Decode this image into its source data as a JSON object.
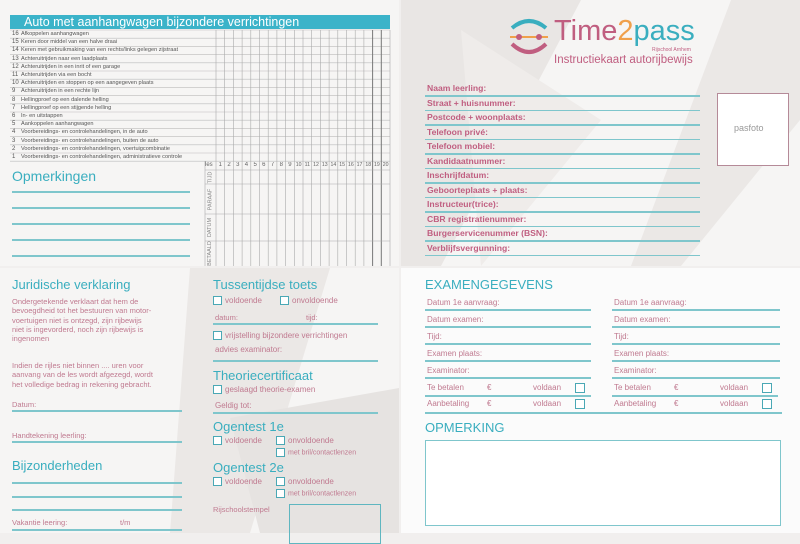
{
  "left_top": {
    "title": "Auto met aanhangwagen bijzondere verrichtingen",
    "rows": [
      {
        "n": "16",
        "t": "Afkoppelen aanhangwagen"
      },
      {
        "n": "15",
        "t": "Keren door middel van een halve draai"
      },
      {
        "n": "14",
        "t": "Keren met gebruikmaking van een rechts/links gelegen zijstraat"
      },
      {
        "n": "13",
        "t": "Achteruitrijden naar een laadplaats"
      },
      {
        "n": "12",
        "t": "Achteruitrijden in een inrit of een garage"
      },
      {
        "n": "11",
        "t": "Achteruitrijden via een bocht"
      },
      {
        "n": "10",
        "t": "Achteruitrijden en stoppen op een aangegeven plaats"
      },
      {
        "n": "9",
        "t": "Achteruitrijden in een rechte lijn"
      },
      {
        "n": "8",
        "t": "Hellingproef op een dalende helling"
      },
      {
        "n": "7",
        "t": "Hellingproef op een stijgende helling"
      },
      {
        "n": "6",
        "t": "In- en uitstappen"
      },
      {
        "n": "5",
        "t": "Aankoppelen aanhangwagen"
      },
      {
        "n": "4",
        "t": "Voorbereidings- en controlehandelingen, in de auto"
      },
      {
        "n": "3",
        "t": "Voorbereidings- en controlehandelingen, buiten de auto"
      },
      {
        "n": "2",
        "t": "Voorbereidings- en controlehandelingen, voertuigcombinatie"
      },
      {
        "n": "1",
        "t": "Voorbereidings- en controlehandelingen, administratieve controle"
      }
    ],
    "les_label": "les",
    "lessons": [
      "1",
      "2",
      "3",
      "4",
      "5",
      "6",
      "7",
      "8",
      "9",
      "10",
      "11",
      "12",
      "13",
      "14",
      "15",
      "16",
      "17",
      "18",
      "19",
      "20"
    ],
    "vertical_labels": [
      "TIJD",
      "PARAAF",
      "DATUM",
      "BETAALD"
    ],
    "remarks_title": "Opmerkingen"
  },
  "right_top": {
    "logo_text": "Time2pass",
    "logo_sub": "Rijschool Arnhem",
    "subtitle": "Instructiekaart autorijbewijs",
    "fields": [
      "Naam leerling:",
      "Straat + huisnummer:",
      "Postcode + woonplaats:",
      "Telefoon privé:",
      "Telefoon mobiel:",
      "Kandidaatnummer:",
      "Inschrijfdatum:",
      "Geboorteplaats + plaats:",
      "Instructeur(trice):",
      "CBR registratienummer:",
      "Burgerservicenummer (BSN):",
      "Verblijfsvergunning:"
    ],
    "photo_label": "pasfoto"
  },
  "left_bottom": {
    "legal_title": "Juridische verklaring",
    "legal_p1": [
      "Ondergetekende verklaart dat hem de",
      "bevoegdheid tot het bestuuren van motor-",
      "voertuigen niet is ontzegd, zijn rijbewijs",
      "niet is ingevorderd, noch zijn rijbewijs is",
      "ingenomen"
    ],
    "legal_p2": [
      "Indien de rijles niet binnen .... uren voor",
      "aanvang van de les wordt afgezegd, wordt",
      "het volledige bedrag in rekening gebracht."
    ],
    "date_label": "Datum:",
    "signature_label": "Handtekening leerling:",
    "details_title": "Bijzonderheden",
    "vacation_label": "Vakantie leering:",
    "vacation_until": "t/m"
  },
  "middle_bottom": {
    "interim_title": "Tussentijdse toets",
    "pass": "voldoende",
    "fail": "onvoldoende",
    "date": "datum:",
    "time": "tijd:",
    "exemption": "vrijstelling bijzondere verrichtingen",
    "advice": "advies examinator:",
    "theory_title": "Theoriecertificaat",
    "theory_pass": "geslaagd theorie-examen",
    "valid_until": "Geldig tot:",
    "eye1_title": "Ogentest 1e",
    "eye2_title": "Ogentest 2e",
    "glasses": "met bril/contactlenzen",
    "stamp": "Rijschoolstempel"
  },
  "right_bottom": {
    "title": "EXAMENGEGEVENS",
    "fields": [
      "Datum 1e aanvraag:",
      "Datum examen:",
      "Tijd:",
      "Examen plaats:",
      "Examinator:"
    ],
    "pay": [
      {
        "label": "Te betalen",
        "cur": "€",
        "paid": "voldaan"
      },
      {
        "label": "Aanbetaling",
        "cur": "€",
        "paid": "voldaan"
      }
    ],
    "remark_title": "OPMERKING"
  },
  "colors": {
    "teal": "#3aaebf",
    "pink": "#c05e80",
    "orange": "#f0a04b"
  }
}
